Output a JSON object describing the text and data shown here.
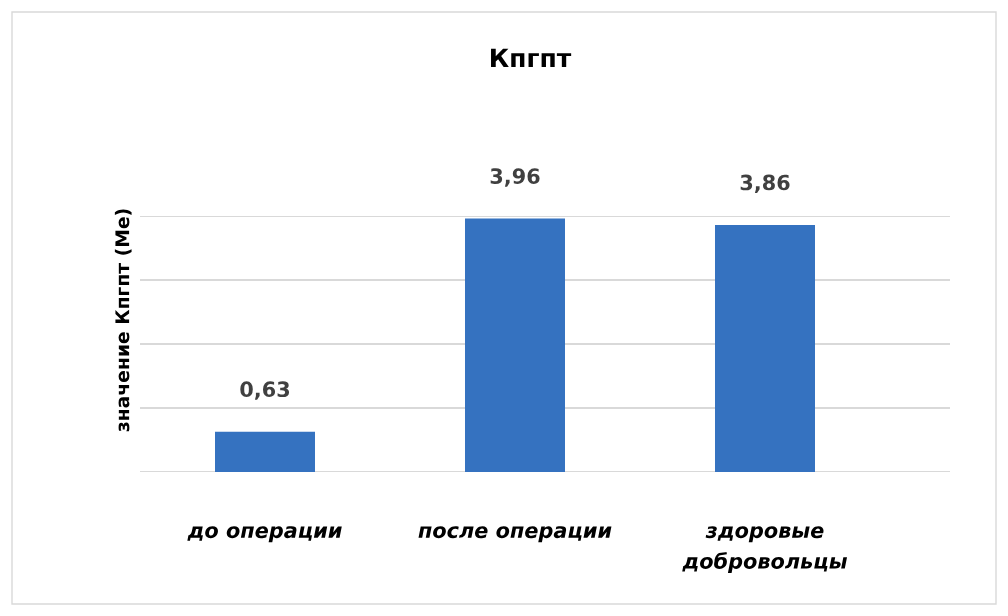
{
  "chart_data": {
    "type": "bar",
    "title": "Кпгпт",
    "ylabel": "значение Кпгпт (Ме)",
    "categories": [
      "до операции",
      "после операции",
      "здоровые\nдобровольцы"
    ],
    "values": [
      0.63,
      3.96,
      3.86
    ],
    "value_labels": [
      "0,63",
      "3,96",
      "3,86"
    ],
    "color": "#3572c0",
    "ylim": [
      0,
      4
    ],
    "yticks": [
      {
        "value": 0,
        "label": null
      },
      {
        "value": 1,
        "label": null
      },
      {
        "value": 2,
        "label": null
      },
      {
        "value": 3,
        "label": null
      },
      {
        "value": 4,
        "label": null
      }
    ],
    "grid": "y",
    "tick_labels": "x"
  }
}
